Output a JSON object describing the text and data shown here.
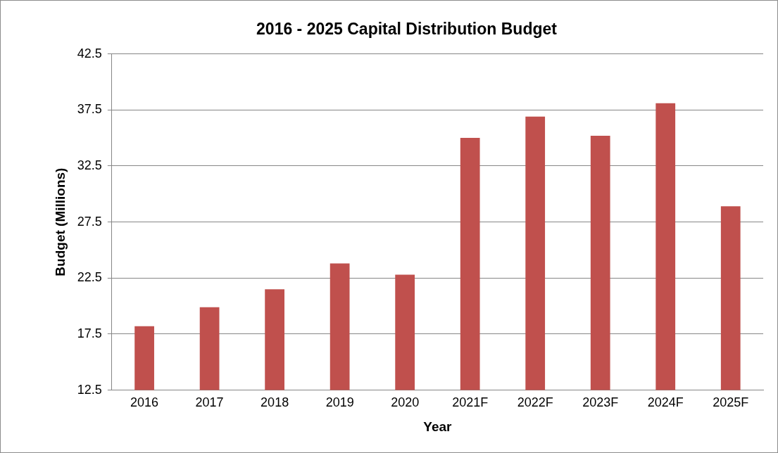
{
  "chart_data": {
    "type": "bar",
    "title": "2016 - 2025 Capital Distribution Budget",
    "xlabel": "Year",
    "ylabel": "Budget (Millions)",
    "categories": [
      "2016",
      "2017",
      "2018",
      "2019",
      "2020",
      "2021F",
      "2022F",
      "2023F",
      "2024F",
      "2025F"
    ],
    "series": [
      {
        "color": "#c0504d",
        "values": [
          18.2,
          19.9,
          21.5,
          23.8,
          22.8,
          35.0,
          36.9,
          35.2,
          38.1,
          28.9
        ]
      }
    ],
    "ylim": [
      12.5,
      42.5
    ],
    "yticks": [
      {
        "value": 12.5,
        "label": "12.5"
      },
      {
        "value": 17.5,
        "label": "17.5"
      },
      {
        "value": 22.5,
        "label": "22.5"
      },
      {
        "value": 27.5,
        "label": "27.5"
      },
      {
        "value": 32.5,
        "label": "32.5"
      },
      {
        "value": 37.5,
        "label": "37.5"
      },
      {
        "value": 42.5,
        "label": "42.5"
      }
    ],
    "grid": "y",
    "legend": false
  }
}
